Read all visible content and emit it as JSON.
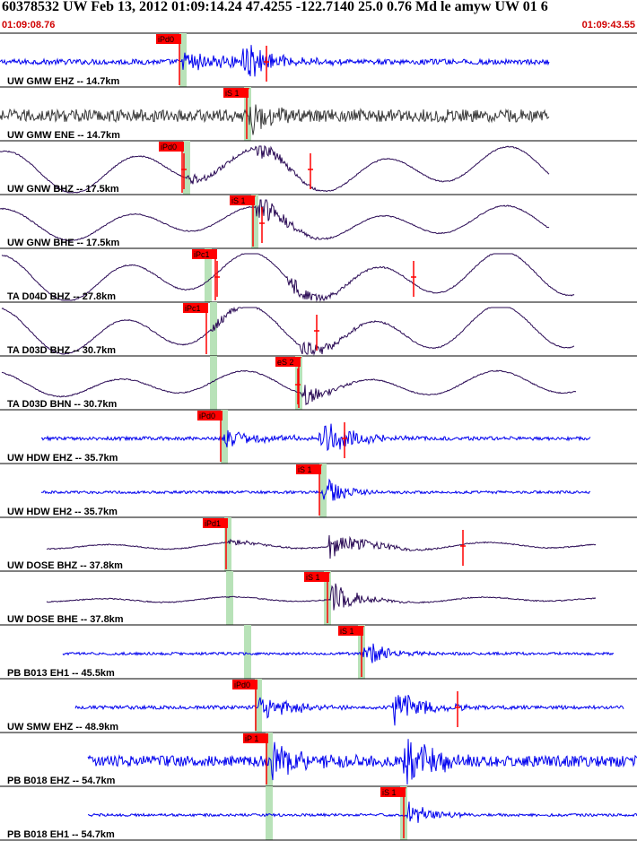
{
  "header": {
    "title": "60378532 UW Feb 13, 2012 01:09:14.24   47.4255 -122.7140 25.0 0.76 Md le amyw UW 01   6",
    "start_time": "01:09:08.76",
    "end_time": "01:09:43.55"
  },
  "colors": {
    "highpass": "#0000ee",
    "broadband": "#2a0a55",
    "noisy": "#3a3a3a",
    "pick": "#ff0000",
    "window": "#b8e2b8",
    "time_start": "#d00000"
  },
  "traces": [
    {
      "label": "UW GMW EHZ -- 14.7km",
      "style": "hf",
      "color": "#0000ee",
      "amp": 3,
      "xs": 0,
      "xe": 612,
      "pick": {
        "label": "iPd0",
        "t": 200
      },
      "win": 200,
      "events": [
        {
          "t": 203,
          "amp": 12,
          "decay": 0.02
        },
        {
          "t": 270,
          "amp": 28,
          "decay": 0.035
        }
      ],
      "marks": [
        297
      ]
    },
    {
      "label": "UW GMW ENE -- 14.7km",
      "style": "noise",
      "color": "#3a3a3a",
      "amp": 7,
      "xs": 0,
      "xe": 612,
      "pick": {
        "label": "iS 1",
        "t": 275
      },
      "win": 272,
      "events": [
        {
          "t": 278,
          "amp": 20,
          "decay": 0.05
        }
      ],
      "marks": []
    },
    {
      "label": "UW GNW BHZ -- 17.5km",
      "style": "lp",
      "color": "#2a0a55",
      "amp": 24,
      "xs": 0,
      "xe": 612,
      "pick": {
        "label": "iPd0",
        "t": 203
      },
      "win": 204,
      "events": [
        {
          "t": 208,
          "amp": 6,
          "decay": 0.02
        },
        {
          "t": 285,
          "amp": 14,
          "decay": 0.04
        }
      ],
      "marks": [
        205,
        346
      ]
    },
    {
      "label": "UW GNW BHE -- 17.5km",
      "style": "lp",
      "color": "#2a0a55",
      "amp": 18,
      "xs": 0,
      "xe": 612,
      "pick": {
        "label": "iS 1",
        "t": 282
      },
      "win": 280,
      "events": [
        {
          "t": 285,
          "amp": 22,
          "decay": 0.04
        }
      ],
      "marks": [
        292
      ]
    },
    {
      "label": "TA D04D BHZ -- 27.8km",
      "style": "lp",
      "color": "#2a0a55",
      "amp": 26,
      "xs": 2,
      "xe": 640,
      "pick": {
        "label": "iPc1",
        "t": 240
      },
      "win": 228,
      "events": [
        {
          "t": 320,
          "amp": 12,
          "decay": 0.03
        }
      ],
      "marks": [
        242,
        461
      ]
    },
    {
      "label": "TA D03D BHZ -- 30.7km",
      "style": "lp",
      "color": "#2a0a55",
      "amp": 26,
      "xs": 2,
      "xe": 640,
      "pick": {
        "label": "iPc1",
        "t": 230
      },
      "win": 234,
      "events": [
        {
          "t": 236,
          "amp": 6,
          "decay": 0.03
        },
        {
          "t": 335,
          "amp": 12,
          "decay": 0.03
        }
      ],
      "marks": [
        353
      ]
    },
    {
      "label": "TA D03D BHN -- 30.7km",
      "style": "lp",
      "color": "#2a0a55",
      "amp": 14,
      "xs": 2,
      "xe": 642,
      "pick": {
        "label": "eS 2",
        "t": 333
      },
      "win": 234,
      "events": [
        {
          "t": 336,
          "amp": 16,
          "decay": 0.05
        }
      ],
      "marks": [
        332
      ]
    },
    {
      "label": "UW HDW EHZ -- 35.7km",
      "style": "hf",
      "color": "#0000ee",
      "amp": 2,
      "xs": 46,
      "xe": 658,
      "pick": {
        "label": "iPd0",
        "t": 246
      },
      "win": 246,
      "events": [
        {
          "t": 249,
          "amp": 10,
          "decay": 0.02
        },
        {
          "t": 356,
          "amp": 24,
          "decay": 0.03
        }
      ],
      "marks": [
        384
      ]
    },
    {
      "label": "UW HDW EH2 -- 35.7km",
      "style": "hf",
      "color": "#0000ee",
      "amp": 1.5,
      "xs": 46,
      "xe": 658,
      "pick": {
        "label": "iS 1",
        "t": 356
      },
      "win": 356,
      "events": [
        {
          "t": 359,
          "amp": 22,
          "decay": 0.05
        }
      ],
      "marks": []
    },
    {
      "label": "UW DOSE BHZ -- 37.8km",
      "style": "lp",
      "color": "#2a0a55",
      "amp": 4,
      "xs": 52,
      "xe": 664,
      "pick": {
        "label": "iPd1",
        "t": 252
      },
      "win": 250,
      "events": [
        {
          "t": 255,
          "amp": 4,
          "decay": 0.03
        },
        {
          "t": 365,
          "amp": 16,
          "decay": 0.025
        }
      ],
      "marks": [
        516
      ]
    },
    {
      "label": "UW DOSE BHE -- 37.8km",
      "style": "lp",
      "color": "#2a0a55",
      "amp": 3,
      "xs": 52,
      "xe": 664,
      "pick": {
        "label": "iS 1",
        "t": 365
      },
      "win": 252,
      "events": [
        {
          "t": 368,
          "amp": 22,
          "decay": 0.04
        }
      ],
      "marks": []
    },
    {
      "label": "PB B013 EH1 -- 45.5km",
      "style": "hf",
      "color": "#0000ee",
      "amp": 1.5,
      "xs": 70,
      "xe": 684,
      "pick": {
        "label": "iS 1",
        "t": 403
      },
      "win": 272,
      "events": [
        {
          "t": 405,
          "amp": 18,
          "decay": 0.04
        }
      ],
      "marks": []
    },
    {
      "label": "UW SMW EHZ -- 48.9km",
      "style": "hf",
      "color": "#0000ee",
      "amp": 2,
      "xs": 84,
      "xe": 695,
      "pick": {
        "label": "iPd0",
        "t": 285
      },
      "win": 284,
      "events": [
        {
          "t": 288,
          "amp": 18,
          "decay": 0.03
        },
        {
          "t": 438,
          "amp": 22,
          "decay": 0.03
        }
      ],
      "marks": [
        510
      ]
    },
    {
      "label": "PB B018 EHZ -- 54.7km",
      "style": "hf",
      "color": "#0000ee",
      "amp": 6,
      "xs": 98,
      "xe": 710,
      "pick": {
        "label": "iP 1",
        "t": 297
      },
      "win": 296,
      "events": [
        {
          "t": 300,
          "amp": 26,
          "decay": 0.03
        },
        {
          "t": 450,
          "amp": 30,
          "decay": 0.03
        }
      ],
      "marks": []
    },
    {
      "label": "PB B018 EH1 -- 54.7km",
      "style": "hf",
      "color": "#0000ee",
      "amp": 1.5,
      "xs": 98,
      "xe": 710,
      "pick": {
        "label": "iS 1",
        "t": 450
      },
      "win": 296,
      "events": [
        {
          "t": 453,
          "amp": 18,
          "decay": 0.04
        }
      ],
      "marks": []
    }
  ]
}
